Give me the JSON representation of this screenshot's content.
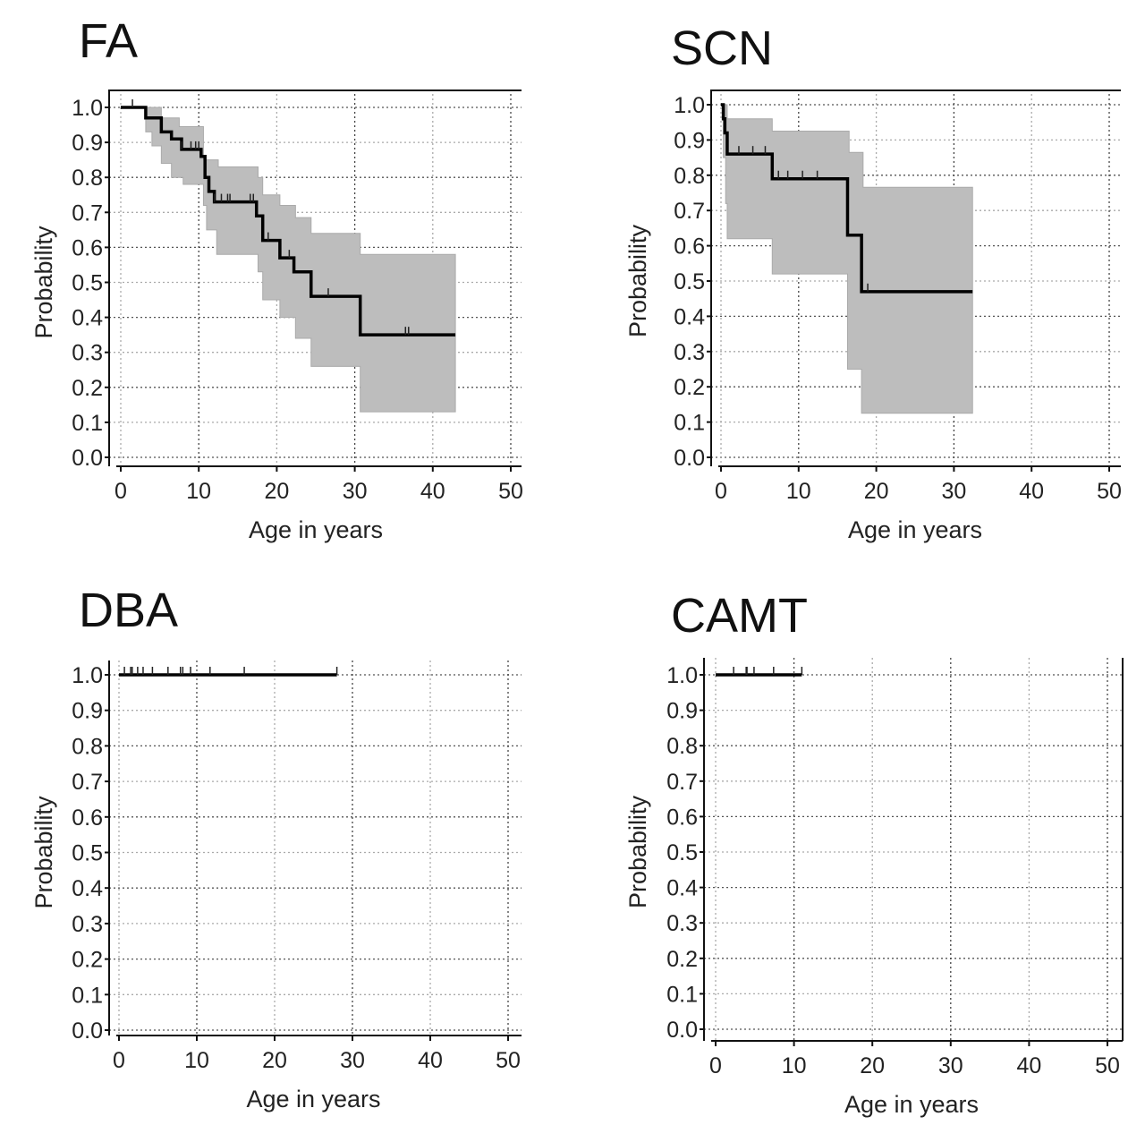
{
  "chart_data": [
    {
      "type": "line",
      "title": "FA",
      "xlabel": "Age in years",
      "ylabel": "Probability",
      "xlim": [
        0,
        50
      ],
      "ylim": [
        0,
        1
      ],
      "xticks": [
        "0",
        "10",
        "20",
        "30",
        "40",
        "50"
      ],
      "yticks": [
        "0.0",
        "0.1",
        "0.2",
        "0.3",
        "0.4",
        "0.5",
        "0.6",
        "0.7",
        "0.8",
        "0.9",
        "1.0"
      ],
      "grid": true,
      "survival": {
        "steps": [
          [
            0,
            1
          ],
          [
            3.2,
            0.97
          ],
          [
            5.2,
            0.93
          ],
          [
            6.5,
            0.91
          ],
          [
            7.8,
            0.88
          ],
          [
            10.3,
            0.86
          ],
          [
            10.8,
            0.8
          ],
          [
            11.3,
            0.76
          ],
          [
            12,
            0.73
          ],
          [
            17.4,
            0.69
          ],
          [
            18.2,
            0.62
          ],
          [
            20.4,
            0.57
          ],
          [
            22.2,
            0.53
          ],
          [
            24.4,
            0.46
          ],
          [
            30.7,
            0.35
          ]
        ],
        "end": 42.9
      },
      "ci_upper": {
        "steps": [
          [
            0,
            1
          ],
          [
            5.2,
            0.97
          ],
          [
            7.5,
            0.945
          ],
          [
            10.6,
            0.85
          ],
          [
            12.5,
            0.83
          ],
          [
            17.6,
            0.8
          ],
          [
            18.2,
            0.75
          ],
          [
            20.4,
            0.72
          ],
          [
            22.4,
            0.685
          ],
          [
            24.4,
            0.64
          ],
          [
            30.7,
            0.58
          ]
        ],
        "end": 42.9
      },
      "ci_lower": {
        "steps": [
          [
            0,
            1
          ],
          [
            3.2,
            0.93
          ],
          [
            4,
            0.89
          ],
          [
            5.2,
            0.84
          ],
          [
            6.5,
            0.8
          ],
          [
            8,
            0.78
          ],
          [
            10.6,
            0.72
          ],
          [
            11,
            0.65
          ],
          [
            12.3,
            0.58
          ],
          [
            17.6,
            0.53
          ],
          [
            18.2,
            0.45
          ],
          [
            20.4,
            0.4
          ],
          [
            22.4,
            0.34
          ],
          [
            24.4,
            0.26
          ],
          [
            30.7,
            0.13
          ]
        ],
        "end": 42.9
      },
      "censored": [
        1.5,
        7.8,
        9.0,
        9.6,
        10.0,
        12.0,
        12.9,
        13.7,
        14.0,
        16.6,
        17.0,
        18.9,
        21.6,
        26.6,
        36.5,
        36.9
      ]
    },
    {
      "type": "line",
      "title": "SCN",
      "xlabel": "Age in years",
      "ylabel": "Probability",
      "xlim": [
        0,
        50
      ],
      "ylim": [
        0,
        1
      ],
      "xticks": [
        "0",
        "10",
        "20",
        "30",
        "40",
        "50"
      ],
      "yticks": [
        "0.0",
        "0.1",
        "0.2",
        "0.3",
        "0.4",
        "0.5",
        "0.6",
        "0.7",
        "0.8",
        "0.9",
        "1.0"
      ],
      "grid": true,
      "survival": {
        "steps": [
          [
            0,
            1
          ],
          [
            0.3,
            0.96
          ],
          [
            0.5,
            0.92
          ],
          [
            0.8,
            0.86
          ],
          [
            6.6,
            0.79
          ],
          [
            16.3,
            0.63
          ],
          [
            18.1,
            0.47
          ]
        ],
        "end": 32.4
      },
      "ci_upper": {
        "steps": [
          [
            0,
            1
          ],
          [
            0.8,
            0.96
          ],
          [
            6.6,
            0.925
          ],
          [
            16.5,
            0.865
          ],
          [
            18.3,
            0.766
          ]
        ],
        "end": 32.4
      },
      "ci_lower": {
        "steps": [
          [
            0,
            1
          ],
          [
            0.3,
            0.85
          ],
          [
            0.6,
            0.72
          ],
          [
            0.8,
            0.62
          ],
          [
            6.6,
            0.52
          ],
          [
            16.3,
            0.25
          ],
          [
            18.1,
            0.125
          ]
        ],
        "end": 32.4
      },
      "censored": [
        2.3,
        4.1,
        5.7,
        7.4,
        8.6,
        10.5,
        12.4,
        18.9
      ]
    },
    {
      "type": "line",
      "title": "DBA",
      "xlabel": "Age in years",
      "ylabel": "Probability",
      "xlim": [
        0,
        50
      ],
      "ylim": [
        0,
        1
      ],
      "xticks": [
        "0",
        "10",
        "20",
        "30",
        "40",
        "50"
      ],
      "yticks": [
        "0.0",
        "0.1",
        "0.2",
        "0.3",
        "0.4",
        "0.5",
        "0.6",
        "0.7",
        "0.8",
        "0.9",
        "1.0"
      ],
      "grid": true,
      "survival": {
        "steps": [
          [
            0,
            1
          ]
        ],
        "end": 28.0
      },
      "censored": [
        0.7,
        1.5,
        1.7,
        2.4,
        3.1,
        4.3,
        6.3,
        7.9,
        8.2,
        9.2,
        11.7,
        16.1,
        28.0
      ]
    },
    {
      "type": "line",
      "title": "CAMT",
      "xlabel": "Age in years",
      "ylabel": "Probability",
      "xlim": [
        0,
        50
      ],
      "ylim": [
        0,
        1
      ],
      "xticks": [
        "0",
        "10",
        "20",
        "30",
        "40",
        "50"
      ],
      "yticks": [
        "0.0",
        "0.1",
        "0.2",
        "0.3",
        "0.4",
        "0.5",
        "0.6",
        "0.7",
        "0.8",
        "0.9",
        "1.0"
      ],
      "grid": true,
      "survival": {
        "steps": [
          [
            0,
            1
          ]
        ],
        "end": 11.0
      },
      "censored": [
        2.3,
        3.9,
        4.0,
        4.9,
        7.4,
        11.0
      ]
    }
  ]
}
